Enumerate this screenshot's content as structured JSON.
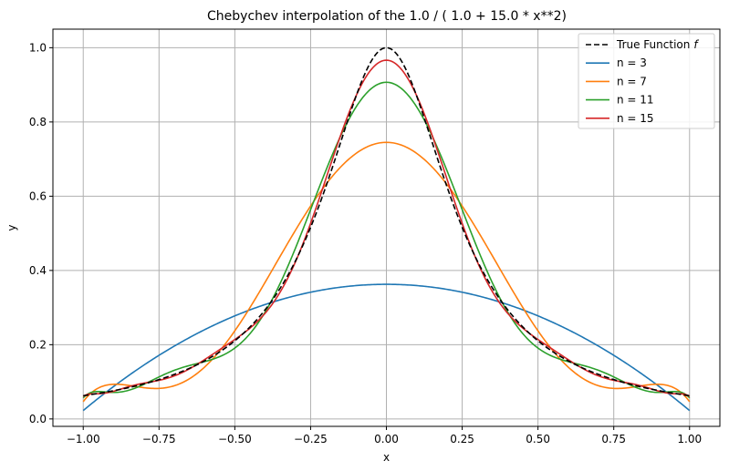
{
  "chart_data": {
    "type": "line",
    "title": "Chebychev interpolation of the 1.0 / ( 1.0 + 15.0 * x**2)",
    "xlabel": "x",
    "ylabel": "y",
    "xlim": [
      -1.1,
      1.1
    ],
    "ylim": [
      -0.02,
      1.05
    ],
    "xticks": [
      -1.0,
      -0.75,
      -0.5,
      -0.25,
      0.0,
      0.25,
      0.5,
      0.75,
      1.0
    ],
    "xtick_labels": [
      "−1.00",
      "−0.75",
      "−0.50",
      "−0.25",
      "0.00",
      "0.25",
      "0.50",
      "0.75",
      "1.00"
    ],
    "yticks": [
      0.0,
      0.2,
      0.4,
      0.6,
      0.8,
      1.0
    ],
    "ytick_labels": [
      "0.0",
      "0.2",
      "0.4",
      "0.6",
      "0.8",
      "1.0"
    ],
    "grid": true,
    "legend_position": "top-right",
    "legend_title": "True Function",
    "legend_title_symbol": "f",
    "function": "1.0 / ( 1.0 + 15.0 * x**2)",
    "series": [
      {
        "name": "True Function",
        "style": "dashed",
        "color": "#000000",
        "degree": 0,
        "x": [
          -1.0,
          -0.75,
          -0.5,
          -0.25,
          0.0,
          0.25,
          0.5,
          0.75,
          1.0
        ],
        "y": [
          0.0625,
          0.106,
          0.2105,
          0.5161,
          1.0,
          0.5161,
          0.2105,
          0.106,
          0.0625
        ]
      },
      {
        "name": "n = 3",
        "style": "solid",
        "color": "#1f77b4",
        "degree": 3,
        "x": [
          -1.0,
          -0.75,
          -0.5,
          -0.25,
          0.0,
          0.25,
          0.5,
          0.75,
          1.0
        ],
        "y": [
          0.024,
          0.17,
          0.274,
          0.342,
          0.365,
          0.342,
          0.274,
          0.17,
          0.024
        ]
      },
      {
        "name": "n = 7",
        "style": "solid",
        "color": "#ff7f0e",
        "degree": 7,
        "x": [
          -1.0,
          -0.9,
          -0.75,
          -0.5,
          -0.25,
          0.0,
          0.25,
          0.5,
          0.75,
          0.9,
          1.0
        ],
        "y": [
          0.048,
          0.093,
          0.084,
          0.25,
          0.573,
          0.747,
          0.573,
          0.25,
          0.084,
          0.093,
          0.048
        ]
      },
      {
        "name": "n = 11",
        "style": "solid",
        "color": "#2ca02c",
        "degree": 11,
        "x": [
          -1.0,
          -0.75,
          -0.5,
          -0.25,
          0.0,
          0.25,
          0.5,
          0.75,
          1.0
        ],
        "y": [
          0.058,
          0.1,
          0.185,
          0.56,
          0.909,
          0.56,
          0.185,
          0.1,
          0.058
        ]
      },
      {
        "name": "n = 15",
        "style": "solid",
        "color": "#d62728",
        "degree": 15,
        "x": [
          -1.0,
          -0.75,
          -0.5,
          -0.25,
          0.0,
          0.25,
          0.5,
          0.75,
          1.0
        ],
        "y": [
          0.06,
          0.105,
          0.205,
          0.53,
          0.968,
          0.53,
          0.205,
          0.105,
          0.06
        ]
      }
    ]
  }
}
